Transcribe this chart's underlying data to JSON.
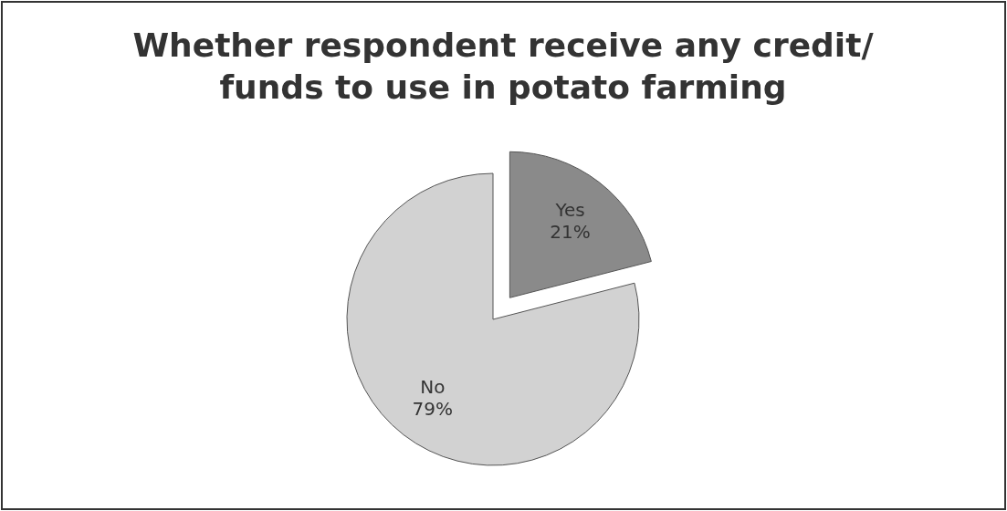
{
  "chart_data": {
    "type": "pie",
    "title": "Whether respondent receive any credit/ funds to use in potato farming",
    "categories": [
      "Yes",
      "No"
    ],
    "values": [
      21,
      79
    ],
    "colors": [
      "#8a8a8a",
      "#d2d2d2"
    ],
    "value_labels": [
      "21%",
      "79%"
    ],
    "legend": false
  }
}
